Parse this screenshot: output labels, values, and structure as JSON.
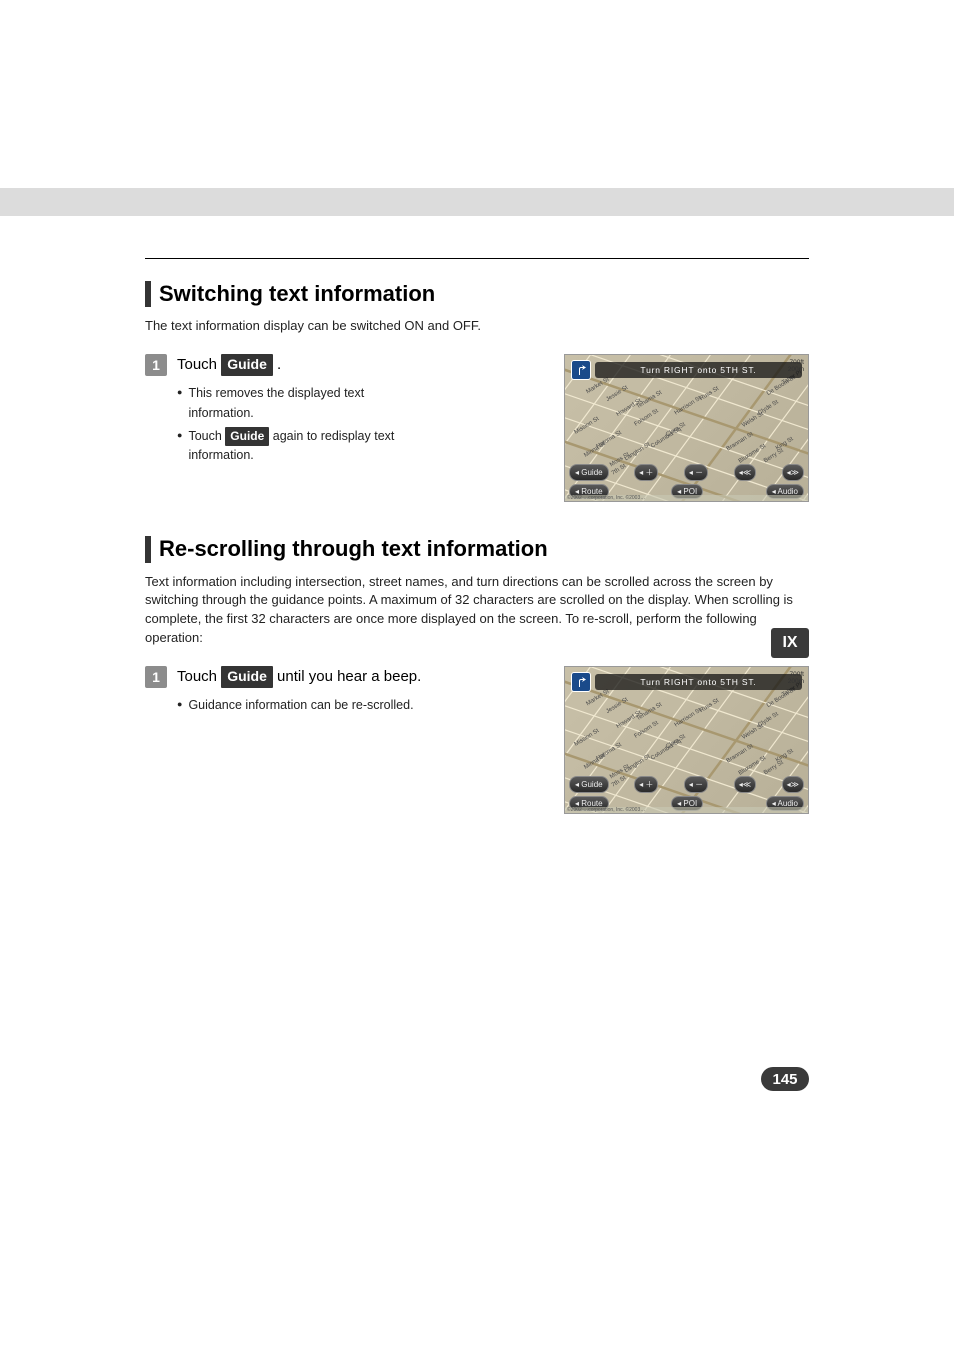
{
  "page": {
    "section1": {
      "title": "Switching text information",
      "intro": "The text information display can be switched ON and OFF.",
      "step_num": "1",
      "step_pre": "Touch ",
      "step_btn": "Guide",
      "step_post": " .",
      "bullets": [
        {
          "t": "This removes the displayed text information."
        },
        {
          "pre": "Touch ",
          "btn": "Guide",
          "post": " again to redisplay text information."
        }
      ]
    },
    "section2": {
      "title": "Re-scrolling through text information",
      "intro": "Text information including intersection, street names, and turn directions can be scrolled across the screen by switching through the guidance points. A maximum of 32 characters are scrolled on the display. When scrolling is complete, the first 32 characters are once more displayed on the screen. To re-scroll, perform the following operation:",
      "step_num": "1",
      "step_pre": "Touch ",
      "step_btn": "Guide",
      "step_post": " until you hear a beep.",
      "bullets": [
        {
          "t": "Guidance information can be re-scrolled."
        }
      ]
    },
    "map": {
      "turn_text": "Turn RIGHT onto 5TH ST.",
      "scale_ft": "700ft",
      "scale_m": "200m",
      "streets": [
        "Market St",
        "Mission St",
        "Howard St",
        "Folsom St",
        "Harrison St",
        "Clara St",
        "Tehama St",
        "Natoma St",
        "Minna St",
        "Jessie St",
        "Columbia Sq",
        "Langton St",
        "Moss St",
        "Russ St",
        "7th St",
        "Brannan St",
        "Bluxome St",
        "Welsh St",
        "Clyde St",
        "De Boom St",
        "Taber Pl",
        "Berry St",
        "King St"
      ],
      "btn_guide": "Guide",
      "btn_route": "Route",
      "btn_poi": "POI",
      "btn_audio": "Audio",
      "copyright": "©2002 …corporation, Inc. ©2003…"
    },
    "sidebar_tab": "IX",
    "page_number": "145",
    "colors": {
      "band": "#dcdcdc",
      "accent_bar": "#343434",
      "step_num_bg": "#8c8c8c",
      "btn_bg": "#343434",
      "map_bg1": "#c8c0a8",
      "map_bg2": "#b8b098",
      "turn_icon_bg": "#1a4a8a",
      "dark_pill": "#3a3a3a"
    }
  }
}
